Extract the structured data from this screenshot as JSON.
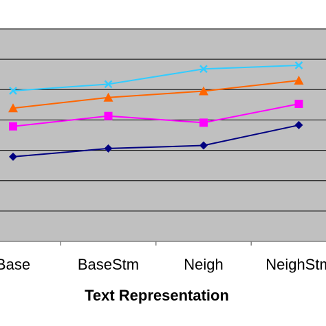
{
  "chart_data": {
    "type": "line",
    "xlabel": "Text Representation",
    "ylabel": "",
    "categories": [
      "Base",
      "BaseStm",
      "Neigh",
      "NeighStm"
    ],
    "ylim": [
      0,
      7
    ],
    "grid": true,
    "series": [
      {
        "color": "#000080",
        "marker": "diamond",
        "values": [
          2.79,
          3.06,
          3.16,
          3.83
        ]
      },
      {
        "color": "#ff00ff",
        "marker": "square",
        "values": [
          3.79,
          4.13,
          3.91,
          4.53
        ]
      },
      {
        "color": "#ff6600",
        "marker": "triangle",
        "values": [
          4.39,
          4.74,
          4.95,
          5.3
        ]
      },
      {
        "color": "#33ccff",
        "marker": "x",
        "values": [
          4.96,
          5.18,
          5.68,
          5.8
        ]
      }
    ],
    "colors": {
      "plot_background": "#c0c0c0",
      "grid": "#000000",
      "axis": "#808080"
    }
  }
}
